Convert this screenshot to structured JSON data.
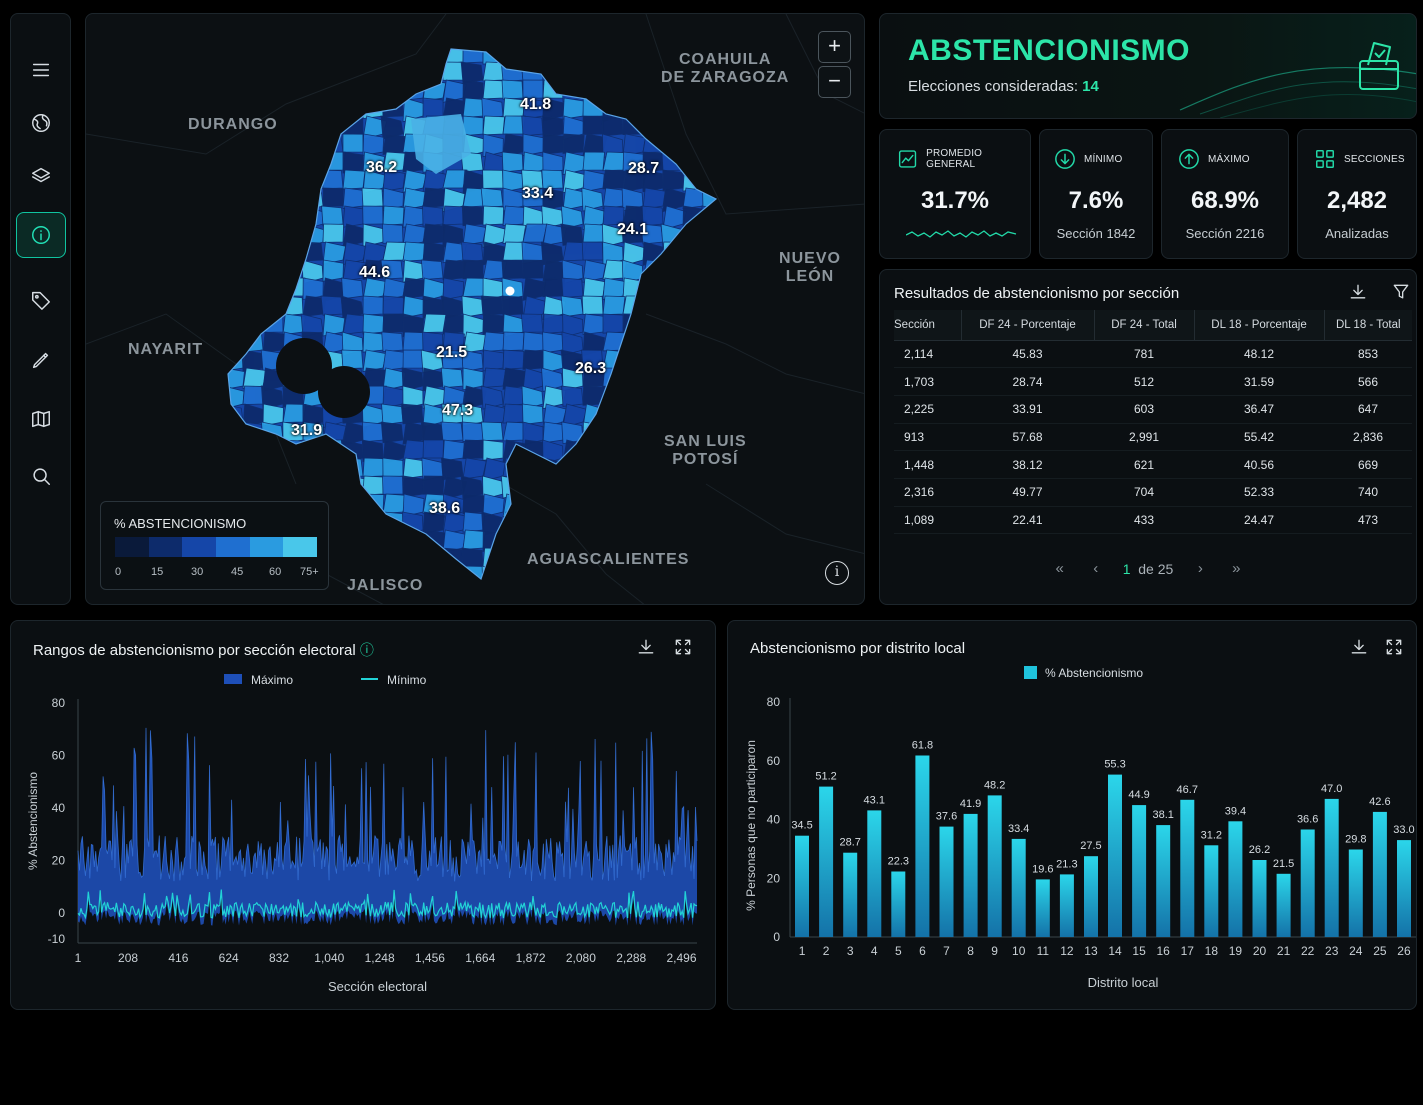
{
  "sidebar": {
    "items": [
      {
        "icon": "menu-icon"
      },
      {
        "icon": "globe-icon"
      },
      {
        "icon": "layers-icon"
      },
      {
        "icon": "info-icon",
        "active": true
      },
      {
        "icon": "tag-icon"
      },
      {
        "icon": "pen-icon"
      },
      {
        "icon": "map-icon"
      },
      {
        "icon": "search-icon"
      }
    ]
  },
  "map": {
    "states": [
      "COAHUILA\nDE ZARAGOZA",
      "DURANGO",
      "NUEVO LEÓN",
      "NAYARIT",
      "SAN LUIS\nPOTOSÍ",
      "AGUASCALIENTES",
      "JALISCO"
    ],
    "values": [
      "41.8",
      "36.2",
      "28.7",
      "33.4",
      "24.1",
      "44.6",
      "21.5",
      "26.3",
      "47.3",
      "31.9",
      "38.6"
    ],
    "zoom_in": "+",
    "zoom_out": "−",
    "legend": {
      "title": "% ABSTENCIONISMO",
      "ticks": [
        "0",
        "15",
        "30",
        "45",
        "60",
        "75+"
      ],
      "colors": [
        "#0a1a3a",
        "#0d2b6b",
        "#1546a8",
        "#1f6fd0",
        "#2a9be0",
        "#49c7ea"
      ]
    }
  },
  "header": {
    "title": "ABSTENCIONISMO",
    "subtitle_label": "Elecciones consideradas:",
    "subtitle_value": "14",
    "accent": "#2ce5a8"
  },
  "kpis": [
    {
      "label": "PROMEDIO GENERAL",
      "value": "31.7%",
      "sub": "",
      "icon": "chart-icon"
    },
    {
      "label": "MÍNIMO",
      "value": "7.6%",
      "sub": "Sección 1842",
      "icon": "arrow-down-icon"
    },
    {
      "label": "MÁXIMO",
      "value": "68.9%",
      "sub": "Sección 2216",
      "icon": "arrow-up-icon"
    },
    {
      "label": "SECCIONES",
      "value": "2,482",
      "sub": "Analizadas",
      "icon": "grid-icon"
    }
  ],
  "table": {
    "title": "Resultados de abstencionismo por sección",
    "columns": [
      "Sección",
      "DF 24 - Porcentaje",
      "DF 24 - Total",
      "DL 18 - Porcentaje",
      "DL 18 - Total"
    ],
    "rows": [
      [
        "2,114",
        "45.83",
        "781",
        "48.12",
        "853"
      ],
      [
        "1,703",
        "28.74",
        "512",
        "31.59",
        "566"
      ],
      [
        "2,225",
        "33.91",
        "603",
        "36.47",
        "647"
      ],
      [
        "913",
        "57.68",
        "2,991",
        "55.42",
        "2,836"
      ],
      [
        "1,448",
        "38.12",
        "621",
        "40.56",
        "669"
      ],
      [
        "2,316",
        "49.77",
        "704",
        "52.33",
        "740"
      ],
      [
        "1,089",
        "22.41",
        "433",
        "24.47",
        "473"
      ]
    ],
    "pager": {
      "current": "1",
      "of_label": "de 25"
    }
  },
  "range_chart": {
    "title": "Rangos de abstencionismo por sección electoral",
    "chart_data": {
      "type": "area",
      "title": "Rangos de abstencionismo por sección electoral",
      "xlabel": "Sección electoral",
      "ylabel": "% Abstencionismo",
      "x_ticks": [
        "1",
        "208",
        "416",
        "624",
        "832",
        "1,040",
        "1,248",
        "1,456",
        "1,664",
        "1,872",
        "2,080",
        "2,288",
        "2,496"
      ],
      "y_ticks": [
        "80",
        "60",
        "40",
        "20",
        "0",
        "-10"
      ],
      "xlim": [
        1,
        2560
      ],
      "ylim": [
        -10,
        80
      ],
      "legend": "top-center",
      "series": [
        {
          "name": "Máximo",
          "color": "#1e4fb8",
          "pattern": "noisy",
          "mean": 18,
          "peak": 72
        },
        {
          "name": "Mínimo",
          "color": "#22d3d6",
          "pattern": "noisy",
          "mean": 2,
          "peak": 10
        }
      ]
    }
  },
  "district_chart": {
    "title": "Abstencionismo por distrito local",
    "chart_data": {
      "type": "bar",
      "title": "Abstencionismo por distrito local",
      "xlabel": "Distrito local",
      "ylabel": "% Personas que no participaron",
      "legend": "top-center",
      "categories": [
        "1",
        "2",
        "3",
        "4",
        "5",
        "6",
        "7",
        "8",
        "9",
        "10",
        "11",
        "12",
        "13",
        "14",
        "15",
        "16",
        "17",
        "18",
        "19",
        "20",
        "21",
        "22",
        "23",
        "24",
        "25",
        "26"
      ],
      "series": [
        {
          "name": "% Abstencionismo",
          "color": "#1fc3dc",
          "values": [
            34.5,
            51.2,
            28.7,
            43.1,
            22.3,
            61.8,
            37.6,
            41.9,
            48.2,
            33.4,
            19.6,
            21.3,
            27.5,
            55.3,
            44.9,
            38.1,
            46.7,
            31.2,
            39.4,
            26.2,
            21.5,
            36.6,
            47.0,
            29.8,
            42.6,
            33.0
          ]
        }
      ],
      "value_labels": [
        "34.5",
        "51.2",
        "28.7",
        "43.1",
        "22.3",
        "61.8",
        "37.6",
        "41.9",
        "48.2",
        "33.4",
        "19.6",
        "21.3",
        "27.5",
        "55.3",
        "44.9",
        "38.1",
        "46.7",
        "31.2",
        "39.4",
        "26.2",
        "21.5",
        "36.6",
        "47.0",
        "29.8",
        "42.6",
        "33.0"
      ],
      "ylim": [
        0,
        80
      ],
      "y_ticks": [
        "80",
        "60",
        "40",
        "20",
        "0"
      ]
    }
  }
}
